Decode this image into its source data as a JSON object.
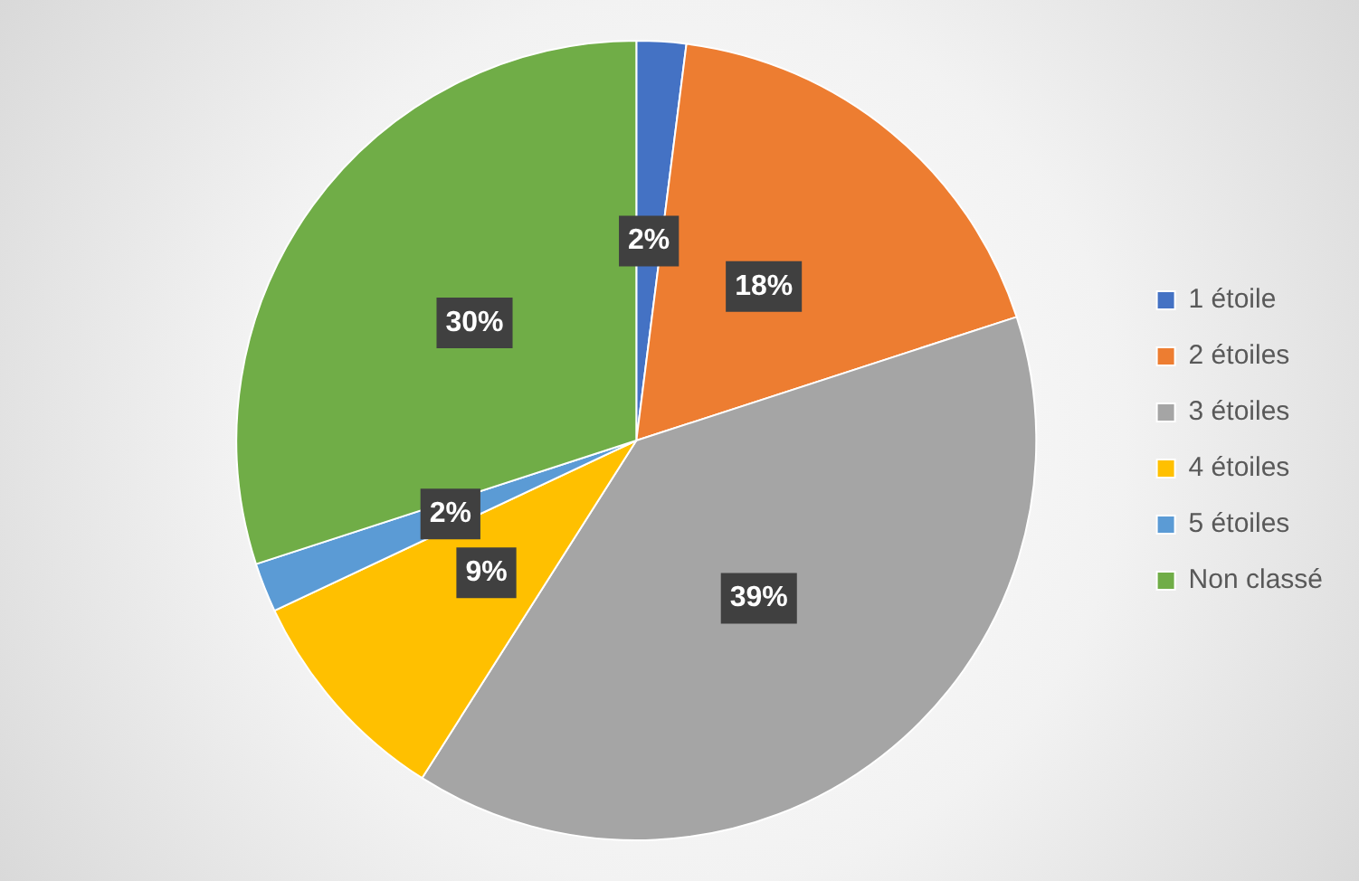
{
  "chart_data": {
    "type": "pie",
    "categories": [
      "1 étoile",
      "2 étoiles",
      "3 étoiles",
      "4 étoiles",
      "5 étoiles",
      "Non classé"
    ],
    "values": [
      2,
      18,
      39,
      9,
      2,
      30
    ],
    "colors": [
      "#4472c4",
      "#ed7d31",
      "#a5a5a5",
      "#ffc000",
      "#5b9bd5",
      "#70ad47"
    ],
    "value_labels": [
      "2%",
      "18%",
      "39%",
      "9%",
      "2%",
      "30%"
    ],
    "legend": "right"
  }
}
